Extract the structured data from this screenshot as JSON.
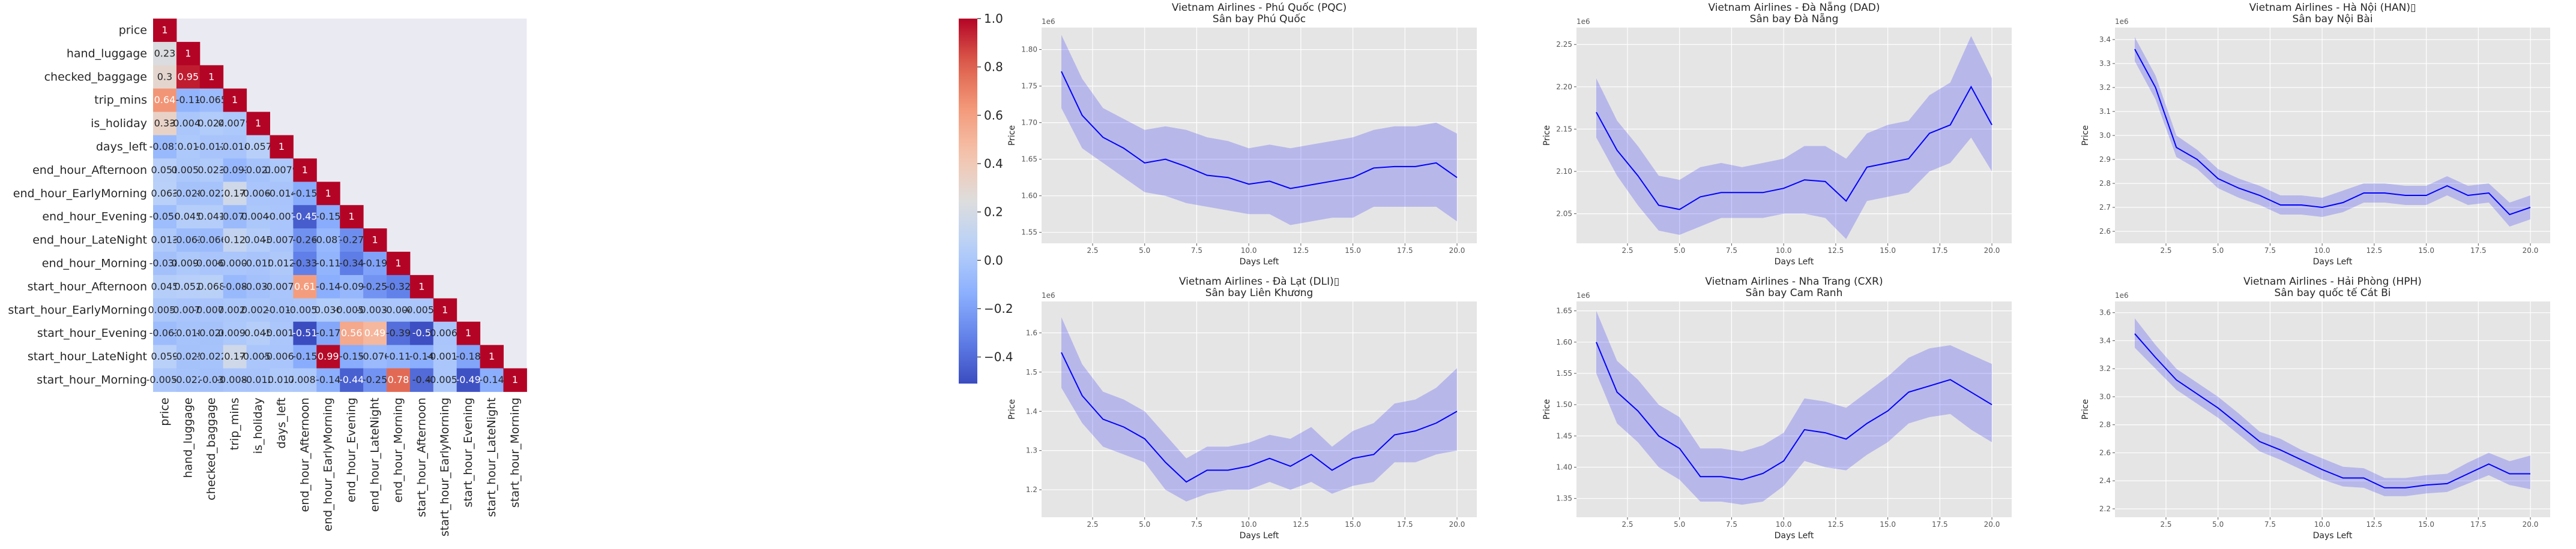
{
  "heatmap": {
    "labels": [
      "price",
      "hand_luggage",
      "checked_baggage",
      "trip_mins",
      "is_holiday",
      "days_left",
      "end_hour_Afternoon",
      "end_hour_EarlyMorning",
      "end_hour_Evening",
      "end_hour_LateNight",
      "end_hour_Morning",
      "start_hour_Afternoon",
      "start_hour_EarlyMorning",
      "start_hour_Evening",
      "start_hour_LateNight",
      "start_hour_Morning"
    ],
    "matrix": [
      [
        "1"
      ],
      [
        "0.23",
        "1"
      ],
      [
        "0.3",
        "0.95",
        "1"
      ],
      [
        "0.64",
        "-0.11",
        "-0.065",
        "1"
      ],
      [
        "0.33",
        "-0.0045",
        "0.024",
        "0.0079",
        "1"
      ],
      [
        "-0.081",
        "0.01",
        "-0.012",
        "-0.014",
        "0.057",
        "1"
      ],
      [
        "0.051",
        "0.0053",
        "0.023",
        "-0.093",
        "-0.021",
        "0.0079",
        "1"
      ],
      [
        "0.063",
        "-0.028",
        "-0.022",
        "0.17",
        "-0.0063",
        "-0.014",
        "-0.15",
        "1"
      ],
      [
        "-0.056",
        "0.045",
        "0.041",
        "-0.071",
        "0.0046",
        "-0.007",
        "-0.45",
        "-0.15",
        "1"
      ],
      [
        "0.013",
        "-0.063",
        "-0.066",
        "0.12",
        "0.043",
        "-0.0071",
        "-0.26",
        "-0.087",
        "-0.27",
        "1"
      ],
      [
        "-0.038",
        "0.0096",
        "-0.0063",
        "-0.0006",
        "-0.015",
        "0.012",
        "-0.33",
        "-0.11",
        "-0.34",
        "-0.19",
        "1"
      ],
      [
        "0.045",
        "0.052",
        "0.068",
        "-0.08",
        "-0.033",
        "-0.0072",
        "0.61",
        "-0.14",
        "-0.09",
        "-0.25",
        "-0.32",
        "1"
      ],
      [
        "0.0052",
        "-0.0072",
        "-0.0073",
        "0.0024",
        "0.0028",
        "-0.013",
        "-0.0053",
        "0.036",
        "-0.0055",
        "-0.0031",
        "-0.004",
        "-0.0051",
        "1"
      ],
      [
        "-0.063",
        "-0.018",
        "-0.026",
        "0.0095",
        "0.045",
        "-0.0016",
        "-0.51",
        "-0.17",
        "0.56",
        "0.49",
        "-0.39",
        "-0.5",
        "-0.0063",
        "1"
      ],
      [
        "0.059",
        "-0.025",
        "-0.022",
        "0.17",
        "-0.0055",
        "-0.0061",
        "-0.15",
        "0.99",
        "-0.15",
        "-0.076",
        "-0.11",
        "-0.14",
        "-0.0018",
        "-0.18",
        "1"
      ],
      [
        "-0.0052",
        "-0.022",
        "-0.03",
        "-0.0089",
        "-0.012",
        "0.017",
        "0.0087",
        "-0.14",
        "-0.44",
        "-0.25",
        "0.78",
        "-0.4",
        "-0.0051",
        "-0.49",
        "-0.14",
        "1"
      ]
    ],
    "colorbar_ticks": [
      "1.0",
      "0.8",
      "0.6",
      "0.4",
      "0.2",
      "0.0",
      "−0.2",
      "−0.4"
    ],
    "colorbar_range": [
      -0.51,
      1.0
    ],
    "colormap": "coolwarm"
  },
  "chart_data": [
    {
      "type": "line",
      "title": "Vietnam Airlines - Phú Quốc (PQC)",
      "subtitle": "Sân bay Phú Quốc",
      "xlabel": "Days Left",
      "ylabel": "Price",
      "offset_text": "1e6",
      "xticks": [
        "2.5",
        "5.0",
        "7.5",
        "10.0",
        "12.5",
        "15.0",
        "17.5",
        "20.0"
      ],
      "yticks": [
        "1.55",
        "1.60",
        "1.65",
        "1.70",
        "1.75",
        "1.80"
      ],
      "xlim": [
        0.05,
        20.95
      ],
      "ylim": [
        1.535,
        1.83
      ],
      "x": [
        1,
        2,
        3,
        4,
        5,
        6,
        7,
        8,
        9,
        10,
        11,
        12,
        13,
        14,
        15,
        16,
        17,
        18,
        19,
        20
      ],
      "y": [
        1.77,
        1.71,
        1.68,
        1.665,
        1.645,
        1.65,
        1.64,
        1.628,
        1.625,
        1.616,
        1.62,
        1.61,
        1.615,
        1.62,
        1.625,
        1.638,
        1.64,
        1.64,
        1.645,
        1.625
      ],
      "ci_low": [
        1.72,
        1.665,
        1.645,
        1.625,
        1.605,
        1.6,
        1.59,
        1.585,
        1.58,
        1.575,
        1.575,
        1.56,
        1.565,
        1.57,
        1.57,
        1.585,
        1.585,
        1.585,
        1.585,
        1.565
      ],
      "ci_high": [
        1.82,
        1.76,
        1.72,
        1.705,
        1.69,
        1.695,
        1.69,
        1.68,
        1.675,
        1.665,
        1.67,
        1.665,
        1.67,
        1.675,
        1.68,
        1.69,
        1.695,
        1.695,
        1.7,
        1.685
      ]
    },
    {
      "type": "line",
      "title": "Vietnam Airlines - Đà Nẵng (DAD)",
      "subtitle": "Sân bay Đà Nẵng",
      "xlabel": "Days Left",
      "ylabel": "Price",
      "offset_text": "1e6",
      "xticks": [
        "2.5",
        "5.0",
        "7.5",
        "10.0",
        "12.5",
        "15.0",
        "17.5",
        "20.0"
      ],
      "yticks": [
        "2.05",
        "2.10",
        "2.15",
        "2.20",
        "2.25"
      ],
      "xlim": [
        0.05,
        20.95
      ],
      "ylim": [
        2.015,
        2.27
      ],
      "x": [
        1,
        2,
        3,
        4,
        5,
        6,
        7,
        8,
        9,
        10,
        11,
        12,
        13,
        14,
        15,
        16,
        17,
        18,
        19,
        20
      ],
      "y": [
        2.17,
        2.125,
        2.095,
        2.06,
        2.055,
        2.07,
        2.075,
        2.075,
        2.075,
        2.08,
        2.09,
        2.088,
        2.065,
        2.105,
        2.11,
        2.115,
        2.145,
        2.155,
        2.2,
        2.155
      ],
      "ci_low": [
        2.14,
        2.095,
        2.06,
        2.03,
        2.025,
        2.035,
        2.045,
        2.045,
        2.045,
        2.05,
        2.05,
        2.045,
        2.02,
        2.065,
        2.07,
        2.075,
        2.1,
        2.11,
        2.14,
        2.1
      ],
      "ci_high": [
        2.21,
        2.16,
        2.13,
        2.095,
        2.09,
        2.105,
        2.11,
        2.105,
        2.11,
        2.115,
        2.13,
        2.13,
        2.115,
        2.145,
        2.155,
        2.16,
        2.19,
        2.205,
        2.26,
        2.21
      ]
    },
    {
      "type": "line",
      "title": "Vietnam Airlines - Hà Nội (HAN)\u0000",
      "subtitle": "Sân bay Nội Bài",
      "xlabel": "Days Left",
      "ylabel": "Price",
      "offset_text": "1e6",
      "xticks": [
        "2.5",
        "5.0",
        "7.5",
        "10.0",
        "12.5",
        "15.0",
        "17.5",
        "20.0"
      ],
      "yticks": [
        "2.6",
        "2.7",
        "2.8",
        "2.9",
        "3.0",
        "3.1",
        "3.2",
        "3.3",
        "3.4"
      ],
      "xlim": [
        0.05,
        20.95
      ],
      "ylim": [
        2.55,
        3.45
      ],
      "x": [
        1,
        2,
        3,
        4,
        5,
        6,
        7,
        8,
        9,
        10,
        11,
        12,
        13,
        14,
        15,
        16,
        17,
        18,
        19,
        20
      ],
      "y": [
        3.36,
        3.2,
        2.95,
        2.9,
        2.82,
        2.78,
        2.75,
        2.71,
        2.71,
        2.7,
        2.72,
        2.76,
        2.76,
        2.75,
        2.75,
        2.79,
        2.75,
        2.76,
        2.67,
        2.7
      ],
      "ci_low": [
        3.31,
        3.15,
        2.91,
        2.86,
        2.78,
        2.74,
        2.71,
        2.67,
        2.67,
        2.66,
        2.68,
        2.72,
        2.72,
        2.71,
        2.71,
        2.75,
        2.71,
        2.72,
        2.62,
        2.65
      ],
      "ci_high": [
        3.41,
        3.25,
        3.0,
        2.94,
        2.86,
        2.82,
        2.79,
        2.75,
        2.75,
        2.74,
        2.77,
        2.8,
        2.8,
        2.79,
        2.79,
        2.83,
        2.79,
        2.8,
        2.72,
        2.75
      ]
    },
    {
      "type": "line",
      "title": "Vietnam Airlines - Đà Lạt (DLI)\u0000",
      "subtitle": "Sân bay Liên Khương",
      "xlabel": "Days Left",
      "ylabel": "Price",
      "offset_text": "1e6",
      "xticks": [
        "2.5",
        "5.0",
        "7.5",
        "10.0",
        "12.5",
        "15.0",
        "17.5",
        "20.0"
      ],
      "yticks": [
        "1.2",
        "1.3",
        "1.4",
        "1.5",
        "1.6"
      ],
      "xlim": [
        0.05,
        20.95
      ],
      "ylim": [
        1.13,
        1.68
      ],
      "x": [
        1,
        2,
        3,
        4,
        5,
        6,
        7,
        8,
        9,
        10,
        11,
        12,
        13,
        14,
        15,
        16,
        17,
        18,
        19,
        20
      ],
      "y": [
        1.55,
        1.44,
        1.38,
        1.36,
        1.33,
        1.27,
        1.22,
        1.25,
        1.25,
        1.26,
        1.28,
        1.26,
        1.29,
        1.25,
        1.28,
        1.29,
        1.34,
        1.35,
        1.37,
        1.4
      ],
      "ci_low": [
        1.46,
        1.37,
        1.31,
        1.29,
        1.27,
        1.2,
        1.17,
        1.19,
        1.2,
        1.2,
        1.22,
        1.2,
        1.22,
        1.19,
        1.21,
        1.22,
        1.27,
        1.27,
        1.29,
        1.3
      ],
      "ci_high": [
        1.64,
        1.52,
        1.45,
        1.43,
        1.4,
        1.34,
        1.28,
        1.31,
        1.31,
        1.32,
        1.34,
        1.33,
        1.36,
        1.31,
        1.35,
        1.37,
        1.42,
        1.43,
        1.46,
        1.51
      ]
    },
    {
      "type": "line",
      "title": "Vietnam Airlines - Nha Trang (CXR)",
      "subtitle": "Sân bay Cam Ranh",
      "xlabel": "Days Left",
      "ylabel": "Price",
      "offset_text": "1e6",
      "xticks": [
        "2.5",
        "5.0",
        "7.5",
        "10.0",
        "12.5",
        "15.0",
        "17.5",
        "20.0"
      ],
      "yticks": [
        "1.35",
        "1.40",
        "1.45",
        "1.50",
        "1.55",
        "1.60",
        "1.65"
      ],
      "xlim": [
        0.05,
        20.95
      ],
      "ylim": [
        1.32,
        1.665
      ],
      "x": [
        1,
        2,
        3,
        4,
        5,
        6,
        7,
        8,
        9,
        10,
        11,
        12,
        13,
        14,
        15,
        16,
        17,
        18,
        19,
        20
      ],
      "y": [
        1.6,
        1.52,
        1.49,
        1.45,
        1.43,
        1.385,
        1.385,
        1.38,
        1.39,
        1.41,
        1.46,
        1.455,
        1.445,
        1.47,
        1.49,
        1.52,
        1.53,
        1.54,
        1.52,
        1.5
      ],
      "ci_low": [
        1.55,
        1.47,
        1.44,
        1.4,
        1.38,
        1.345,
        1.345,
        1.34,
        1.345,
        1.37,
        1.41,
        1.4,
        1.395,
        1.42,
        1.44,
        1.47,
        1.48,
        1.485,
        1.46,
        1.44
      ],
      "ci_high": [
        1.65,
        1.57,
        1.54,
        1.5,
        1.48,
        1.43,
        1.43,
        1.425,
        1.435,
        1.455,
        1.51,
        1.505,
        1.495,
        1.52,
        1.545,
        1.575,
        1.59,
        1.595,
        1.58,
        1.565
      ]
    },
    {
      "type": "line",
      "title": "Vietnam Airlines - Hải Phòng (HPH)",
      "subtitle": "Sân bay quốc tế Cát Bi",
      "xlabel": "Days Left",
      "ylabel": "Price",
      "offset_text": "1e6",
      "xticks": [
        "2.5",
        "5.0",
        "7.5",
        "10.0",
        "12.5",
        "15.0",
        "17.5",
        "20.0"
      ],
      "yticks": [
        "2.2",
        "2.4",
        "2.6",
        "2.8",
        "3.0",
        "3.2",
        "3.4",
        "3.6"
      ],
      "xlim": [
        0.05,
        20.95
      ],
      "ylim": [
        2.14,
        3.68
      ],
      "x": [
        1,
        2,
        3,
        4,
        5,
        6,
        7,
        8,
        9,
        10,
        11,
        12,
        13,
        14,
        15,
        16,
        17,
        18,
        19,
        20
      ],
      "y": [
        3.45,
        3.28,
        3.12,
        3.02,
        2.92,
        2.8,
        2.68,
        2.62,
        2.55,
        2.48,
        2.42,
        2.42,
        2.35,
        2.35,
        2.37,
        2.38,
        2.45,
        2.52,
        2.45,
        2.45
      ],
      "ci_low": [
        3.35,
        3.2,
        3.05,
        2.95,
        2.85,
        2.73,
        2.61,
        2.55,
        2.48,
        2.41,
        2.36,
        2.35,
        2.29,
        2.29,
        2.31,
        2.32,
        2.38,
        2.44,
        2.37,
        2.34
      ],
      "ci_high": [
        3.56,
        3.37,
        3.2,
        3.1,
        3.0,
        2.88,
        2.75,
        2.7,
        2.62,
        2.56,
        2.5,
        2.49,
        2.42,
        2.42,
        2.44,
        2.45,
        2.53,
        2.6,
        2.54,
        2.58
      ]
    }
  ]
}
